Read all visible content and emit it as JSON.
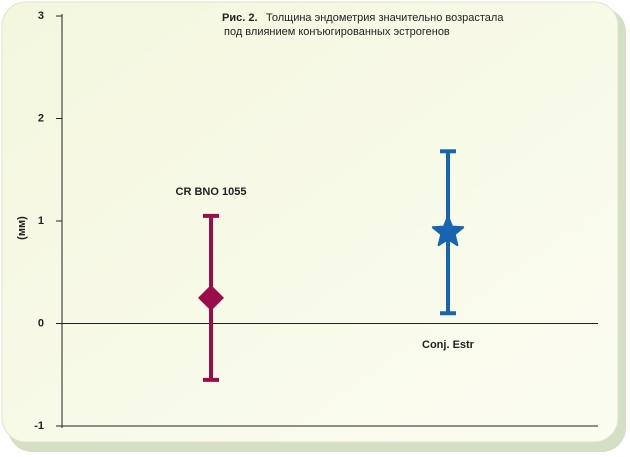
{
  "chart_data": {
    "type": "errorbar",
    "figure_label": "Рис. 2.",
    "title": [
      "Толщина эндометрия значительно возрастала",
      "под влиянием конъюгированных эстрогенов"
    ],
    "y_label": "(мм)",
    "categories": [
      "CR BNO 1055",
      "Conj. Estr"
    ],
    "values": [
      0.25,
      0.89
    ],
    "errors": [
      0.8,
      0.79
    ],
    "colors": [
      "#9b0d4a",
      "#1565b0"
    ],
    "markers": [
      "diamond",
      "star"
    ],
    "ylim": [
      -1,
      3
    ],
    "yticks": [
      -1,
      0,
      1,
      2,
      3
    ]
  }
}
